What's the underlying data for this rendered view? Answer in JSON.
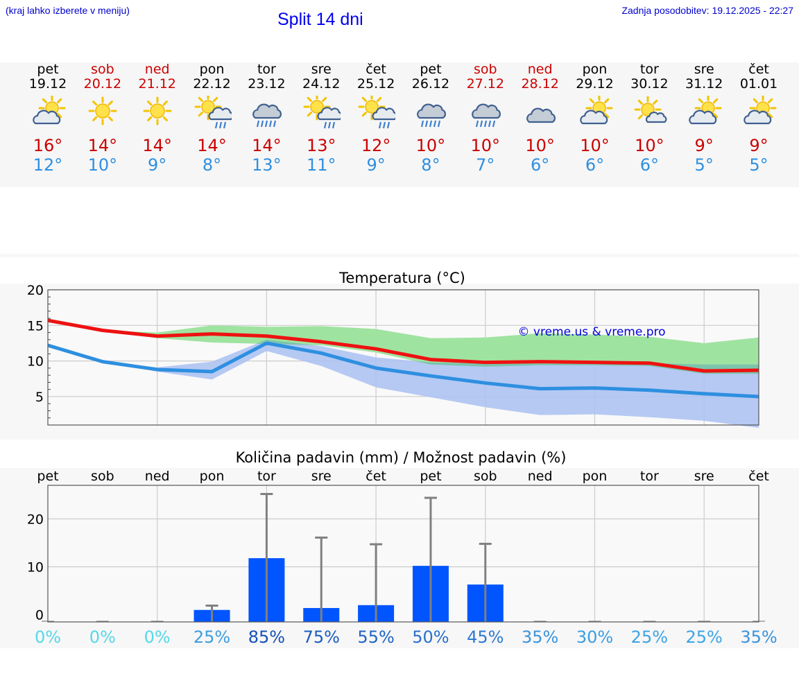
{
  "header": {
    "hint": "(kraj lahko izberete v meniju)",
    "title": "Split 14 dni",
    "updated": "Zadnja posodobitev: 19.12.2025 - 22:27"
  },
  "days": [
    {
      "name": "pet",
      "date": "19.12",
      "weekend": false,
      "icon": "sun-cloud-icon",
      "max": "16°",
      "min": "12°"
    },
    {
      "name": "sob",
      "date": "20.12",
      "weekend": true,
      "icon": "sun-icon",
      "max": "14°",
      "min": "10°"
    },
    {
      "name": "ned",
      "date": "21.12",
      "weekend": true,
      "icon": "sun-icon",
      "max": "14°",
      "min": "9°"
    },
    {
      "name": "pon",
      "date": "22.12",
      "weekend": false,
      "icon": "sun-cloud-rain-icon",
      "max": "14°",
      "min": "8°"
    },
    {
      "name": "tor",
      "date": "23.12",
      "weekend": false,
      "icon": "cloud-rain-icon",
      "max": "14°",
      "min": "13°"
    },
    {
      "name": "sre",
      "date": "24.12",
      "weekend": false,
      "icon": "sun-cloud-rain-icon",
      "max": "13°",
      "min": "11°"
    },
    {
      "name": "čet",
      "date": "25.12",
      "weekend": false,
      "icon": "sun-cloud-rain-icon",
      "max": "12°",
      "min": "9°"
    },
    {
      "name": "pet",
      "date": "26.12",
      "weekend": false,
      "icon": "cloud-rain-icon",
      "max": "10°",
      "min": "8°"
    },
    {
      "name": "sob",
      "date": "27.12",
      "weekend": true,
      "icon": "cloud-rain-icon",
      "max": "10°",
      "min": "7°"
    },
    {
      "name": "ned",
      "date": "28.12",
      "weekend": true,
      "icon": "cloud-icon",
      "max": "10°",
      "min": "6°"
    },
    {
      "name": "pon",
      "date": "29.12",
      "weekend": false,
      "icon": "sun-cloud-icon",
      "max": "10°",
      "min": "6°"
    },
    {
      "name": "tor",
      "date": "30.12",
      "weekend": false,
      "icon": "sun-small-cloud-icon",
      "max": "10°",
      "min": "6°"
    },
    {
      "name": "sre",
      "date": "31.12",
      "weekend": false,
      "icon": "sun-cloud-icon",
      "max": "9°",
      "min": "5°"
    },
    {
      "name": "čet",
      "date": "01.01",
      "weekend": false,
      "icon": "sun-cloud-icon",
      "max": "9°",
      "min": "5°"
    }
  ],
  "colors": {
    "max": "#ee1111",
    "min": "#2e8fe0",
    "band_green": "#9fe3a0",
    "band_blue": "#a9c1f2",
    "band_overlap": "#7cc4ac",
    "bar": "#0055ff",
    "error": "#808080"
  },
  "chart_data": [
    {
      "type": "line",
      "title": "Temperatura (°C)",
      "watermark": "© vreme.us & vreme.pro",
      "x": [
        0,
        1,
        2,
        3,
        4,
        5,
        6,
        7,
        8,
        9,
        10,
        11,
        12,
        13
      ],
      "ylim": [
        1,
        20
      ],
      "yticks": [
        5,
        10,
        15,
        20
      ],
      "series": [
        {
          "name": "max",
          "values": [
            15.7,
            14.3,
            13.5,
            13.8,
            13.5,
            12.7,
            11.7,
            10.2,
            9.8,
            9.9,
            9.8,
            9.7,
            8.6,
            8.7
          ]
        },
        {
          "name": "min",
          "values": [
            12.2,
            9.9,
            8.8,
            8.5,
            12.5,
            11.1,
            9.0,
            7.9,
            6.9,
            6.1,
            6.2,
            5.9,
            5.4,
            5.0
          ]
        }
      ],
      "bands": [
        {
          "name": "max-range",
          "lower": [
            15.7,
            14.3,
            13.2,
            12.6,
            12.4,
            12.2,
            11.2,
            9.5,
            9.2,
            9.4,
            9.4,
            9.3,
            8.2,
            8.2
          ],
          "upper": [
            15.7,
            14.3,
            14.0,
            15.0,
            14.8,
            14.9,
            14.5,
            13.2,
            13.3,
            13.9,
            13.7,
            13.4,
            12.5,
            13.3
          ]
        },
        {
          "name": "min-range",
          "lower": [
            12.2,
            9.9,
            8.5,
            7.4,
            11.4,
            9.3,
            6.3,
            4.9,
            3.5,
            2.4,
            2.5,
            2.1,
            1.6,
            0.6
          ],
          "upper": [
            12.2,
            9.9,
            9.1,
            9.9,
            13.0,
            12.1,
            10.5,
            9.8,
            9.6,
            9.6,
            9.6,
            9.7,
            9.5,
            9.5
          ]
        }
      ]
    },
    {
      "type": "bar",
      "title": "Količina padavin (mm) / Možnost padavin (%)",
      "categories": [
        "pet",
        "sob",
        "ned",
        "pon",
        "tor",
        "sre",
        "čet",
        "pet",
        "sob",
        "ned",
        "pon",
        "tor",
        "sre",
        "čet"
      ],
      "values": [
        0,
        0,
        0,
        1.0,
        11.8,
        1.4,
        2.0,
        10.2,
        6.3,
        0,
        0,
        0,
        0,
        0
      ],
      "error_high": [
        0,
        0,
        0,
        1.9,
        25.2,
        16.1,
        14.7,
        24.4,
        14.8,
        0,
        0,
        0,
        0,
        0
      ],
      "probability": [
        "0%",
        "0%",
        "0%",
        "25%",
        "85%",
        "75%",
        "55%",
        "50%",
        "45%",
        "35%",
        "30%",
        "25%",
        "25%",
        "35%"
      ],
      "prob_colors": [
        "#55d8e8",
        "#55d8e8",
        "#55d8e8",
        "#3b9de0",
        "#1550b8",
        "#1a5cc0",
        "#1e64c6",
        "#2870cc",
        "#2f7ad0",
        "#3a93dc",
        "#3b9ee2",
        "#3ca4e4",
        "#3ca4e4",
        "#3a93dc"
      ],
      "ylim": [
        -1.5,
        27
      ],
      "yticks": [
        0,
        10,
        20
      ]
    }
  ]
}
